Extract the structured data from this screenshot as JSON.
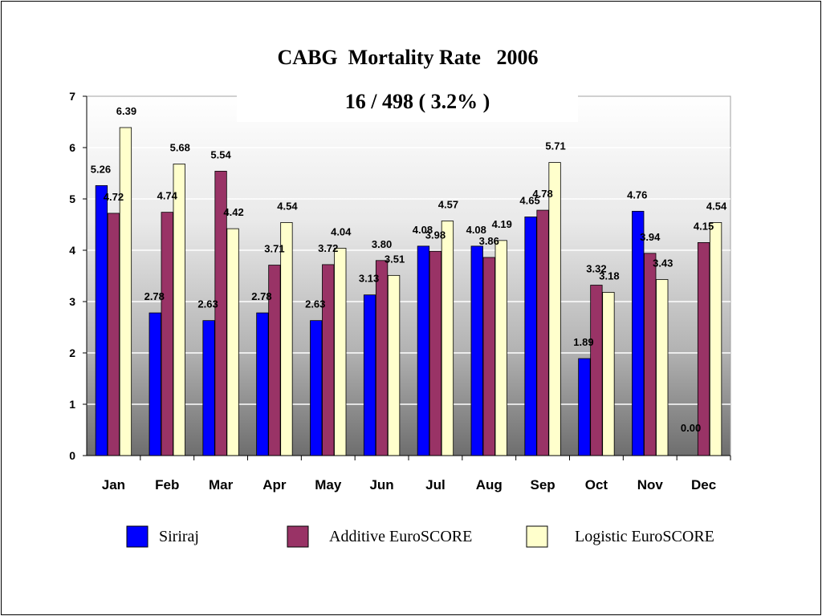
{
  "chart_data": {
    "type": "bar",
    "title": "CABG  Mortality Rate   2006",
    "subtitle": "16 / 498 ( 3.2% )",
    "categories": [
      "Jan",
      "Feb",
      "Mar",
      "Apr",
      "May",
      "Jun",
      "Jul",
      "Aug",
      "Sep",
      "Oct",
      "Nov",
      "Dec"
    ],
    "series": [
      {
        "name": "Siriraj",
        "color": "#0000ff",
        "values": [
          5.26,
          2.78,
          2.63,
          2.78,
          2.63,
          3.13,
          4.08,
          4.08,
          4.65,
          1.89,
          4.76,
          0.0
        ],
        "labels": [
          "5.26",
          "2.78",
          "2.63",
          "2.78",
          "2.63",
          "3.13",
          "4.08",
          "4.08",
          "4.65",
          "1.89",
          "4.76",
          "0.00"
        ]
      },
      {
        "name": "Additive EuroSCORE",
        "color": "#993366",
        "values": [
          4.72,
          4.74,
          5.54,
          3.71,
          3.72,
          3.8,
          3.98,
          3.86,
          4.78,
          3.32,
          3.94,
          4.15
        ],
        "labels": [
          "4.72",
          "4.74",
          "5.54",
          "3.71",
          "3.72",
          "3.80",
          "3.98",
          "3.86",
          "4.78",
          "3.32",
          "3.94",
          "4.15"
        ]
      },
      {
        "name": "Logistic EuroSCORE",
        "color": "#ffffcc",
        "values": [
          6.39,
          5.68,
          4.42,
          4.54,
          4.04,
          3.51,
          4.57,
          4.19,
          5.71,
          3.18,
          3.43,
          4.54
        ],
        "labels": [
          "6.39",
          "5.68",
          "4.42",
          "4.54",
          "4.04",
          "3.51",
          "4.57",
          "4.19",
          "5.71",
          "3.18",
          "3.43",
          "4.54"
        ]
      }
    ],
    "ylim": [
      0,
      7
    ],
    "yticks": [
      "0",
      "1",
      "2",
      "3",
      "4",
      "5",
      "6",
      "7"
    ],
    "grid": true,
    "legend_position": "bottom"
  }
}
